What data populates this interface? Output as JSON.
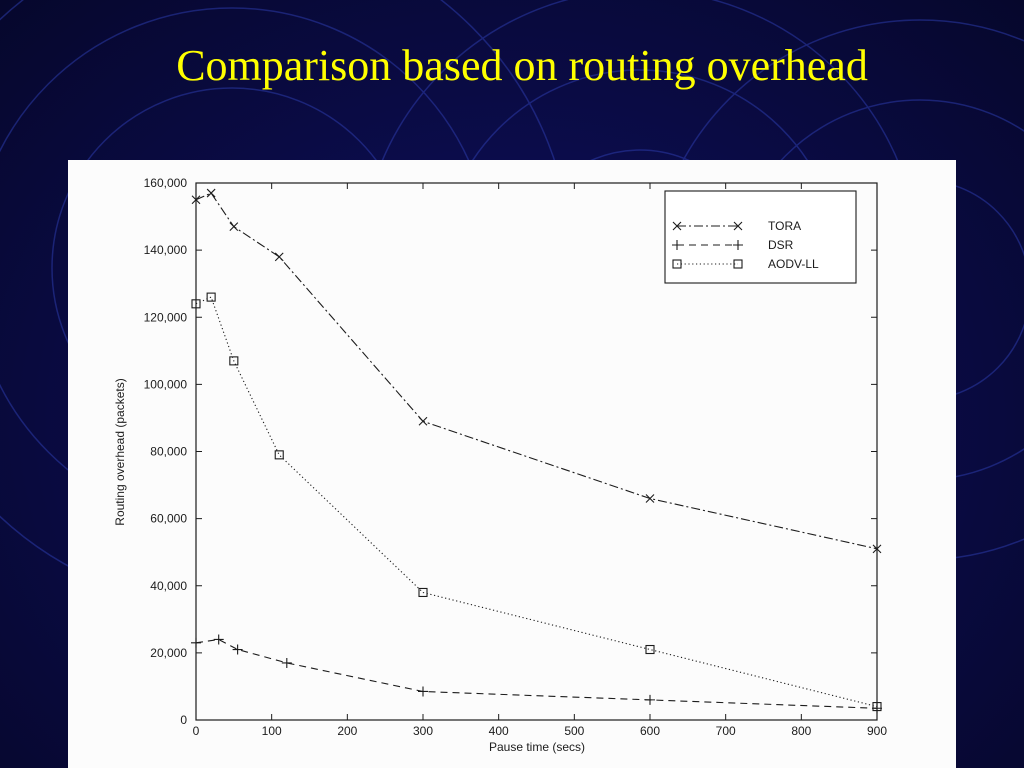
{
  "slide": {
    "title": "Comparison based on routing overhead"
  },
  "colors": {
    "background": "#0b0c4a",
    "title": "#ffff00",
    "circles": "#2b3aa8",
    "chart_background": "#fcfcfc",
    "ink": "#1c1c1c"
  },
  "chart_data": {
    "type": "line",
    "title": "",
    "xlabel": "Pause time (secs)",
    "ylabel": "Routing overhead (packets)",
    "xlim": [
      0,
      900
    ],
    "ylim": [
      0,
      160000
    ],
    "x_ticks": [
      "0",
      "100",
      "200",
      "300",
      "400",
      "500",
      "600",
      "700",
      "800",
      "900"
    ],
    "y_ticks": [
      "0",
      "20,000",
      "40,000",
      "60,000",
      "80,000",
      "100,000",
      "120,000",
      "140,000",
      "160,000"
    ],
    "grid": false,
    "legend_position": "top-right",
    "series": [
      {
        "name": "TORA",
        "marker": "x",
        "line_style": "dash-dot",
        "points": [
          [
            0,
            155000
          ],
          [
            20,
            157000
          ],
          [
            50,
            147000
          ],
          [
            110,
            138000
          ],
          [
            300,
            89000
          ],
          [
            600,
            66000
          ],
          [
            900,
            51000
          ]
        ]
      },
      {
        "name": "DSR",
        "marker": "+",
        "line_style": "dashed",
        "points": [
          [
            0,
            23000
          ],
          [
            30,
            24000
          ],
          [
            55,
            21000
          ],
          [
            120,
            17000
          ],
          [
            300,
            8500
          ],
          [
            600,
            6000
          ],
          [
            900,
            3500
          ]
        ]
      },
      {
        "name": "AODV-LL",
        "marker": "square",
        "line_style": "dotted",
        "points": [
          [
            0,
            124000
          ],
          [
            20,
            126000
          ],
          [
            50,
            107000
          ],
          [
            110,
            79000
          ],
          [
            300,
            38000
          ],
          [
            600,
            21000
          ],
          [
            900,
            4000
          ]
        ]
      }
    ]
  }
}
